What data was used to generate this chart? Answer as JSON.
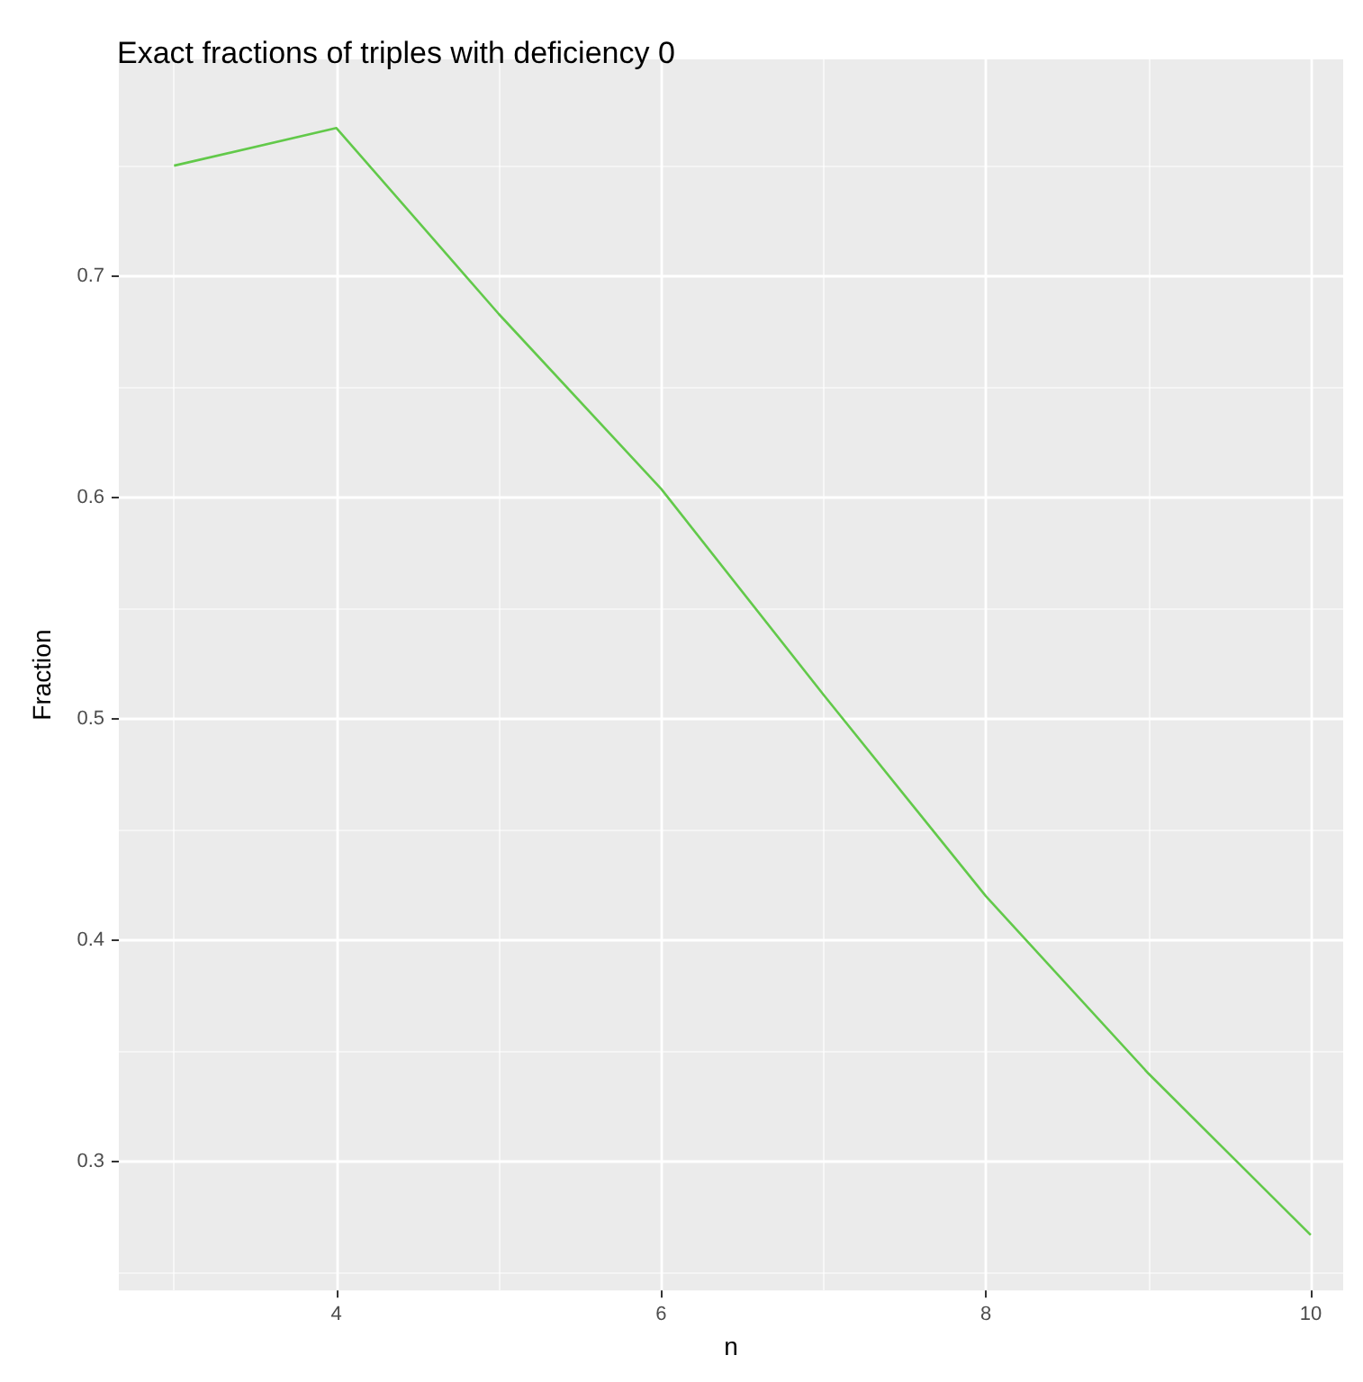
{
  "chart_data": {
    "type": "line",
    "title": "Exact fractions of triples with deficiency 0",
    "xlabel": "n",
    "ylabel": "Fraction",
    "x": [
      3,
      4,
      5,
      6,
      7,
      8,
      9,
      10
    ],
    "series": [
      {
        "color": "#62c94a",
        "values": [
          0.75,
          0.767,
          0.683,
          0.604,
          0.511,
          0.42,
          0.34,
          0.267
        ]
      }
    ],
    "xlim": [
      2.66,
      10.2
    ],
    "xticks": [
      4,
      6,
      8,
      10
    ],
    "ylim": [
      0.242,
      0.798
    ],
    "yticks": [
      0.3,
      0.4,
      0.5,
      0.6,
      0.7
    ],
    "grid": true,
    "marker": "none",
    "line_style": "solid"
  }
}
